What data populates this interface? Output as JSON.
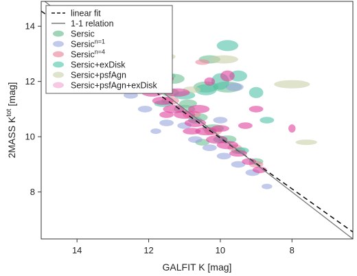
{
  "chart_data": {
    "type": "scatter",
    "xlabel": "GALFIT K [mag]",
    "ylabel_main": "2MASS K",
    "ylabel_sup": "tot",
    "ylabel_unit": "[mag]",
    "xlim": [
      15,
      6.3
    ],
    "ylim": [
      14.9,
      6.3
    ],
    "x_reversed": true,
    "y_reversed": true,
    "x_ticks": [
      14,
      12,
      10,
      8
    ],
    "y_ticks": [
      8,
      10,
      12,
      14
    ],
    "grid": false,
    "legend_position": "top-left",
    "lines": [
      {
        "name": "linear fit",
        "style": "dashed",
        "color": "#111111",
        "x": [
          15,
          6.3
        ],
        "y": [
          14.55,
          6.55
        ]
      },
      {
        "name": "1-1 relation",
        "style": "solid",
        "color": "#777777",
        "x": [
          15,
          6.3
        ],
        "y": [
          15,
          6.3
        ]
      }
    ],
    "legend": [
      {
        "type": "line",
        "style": "dashed",
        "base": "linear fit",
        "sup": ""
      },
      {
        "type": "line",
        "style": "solid",
        "base": "1-1 relation",
        "sup": ""
      },
      {
        "type": "marker",
        "color": "#8fccaa",
        "base": "Sersic",
        "sup": ""
      },
      {
        "type": "marker",
        "color": "#b7bfe6",
        "base": "Sersic",
        "sup": "n=1"
      },
      {
        "type": "marker",
        "color": "#f0a3b3",
        "base": "Sersic",
        "sup": "n=4"
      },
      {
        "type": "marker",
        "color": "#7fd6c1",
        "base": "Sersic+exDisk",
        "sup": ""
      },
      {
        "type": "marker",
        "color": "#d8dfc2",
        "base": "Sersic+psfAgn",
        "sup": ""
      },
      {
        "type": "marker",
        "color": "#f5bedf",
        "base": "Sersic+psfAgn+exDisk",
        "sup": ""
      }
    ],
    "series": [
      {
        "name": "Sersic",
        "color": "#6cbf95",
        "points": [
          [
            13.7,
            13.5,
            0.35,
            0.2
          ],
          [
            13.2,
            13.2,
            0.3,
            0.15
          ],
          [
            12.8,
            13.3,
            0.45,
            0.15
          ],
          [
            12.5,
            12.7,
            0.3,
            0.2
          ],
          [
            12.1,
            12.5,
            0.25,
            0.15
          ],
          [
            11.8,
            12.0,
            0.3,
            0.15
          ],
          [
            11.4,
            11.6,
            0.25,
            0.15
          ],
          [
            11.0,
            11.0,
            0.3,
            0.15
          ],
          [
            10.6,
            10.7,
            0.25,
            0.15
          ],
          [
            10.2,
            10.3,
            0.3,
            0.15
          ],
          [
            9.8,
            9.9,
            0.25,
            0.15
          ],
          [
            9.5,
            9.5,
            0.2,
            0.12
          ],
          [
            10.4,
            11.8,
            0.35,
            0.2
          ],
          [
            9.8,
            11.8,
            0.4,
            0.2
          ],
          [
            10.3,
            12.8,
            0.3,
            0.15
          ],
          [
            12.2,
            13.1,
            0.45,
            0.15
          ],
          [
            11.3,
            12.1,
            0.3,
            0.18
          ],
          [
            10.9,
            11.2,
            0.25,
            0.15
          ],
          [
            10.5,
            9.8,
            0.2,
            0.12
          ],
          [
            9.0,
            9.1,
            0.2,
            0.12
          ],
          [
            11.6,
            12.2,
            0.35,
            0.15
          ]
        ]
      },
      {
        "name": "Sersic n=1",
        "color": "#9aa6dd",
        "points": [
          [
            11.5,
            10.5,
            0.2,
            0.12
          ],
          [
            11.0,
            10.4,
            0.2,
            0.12
          ],
          [
            10.7,
            9.9,
            0.2,
            0.12
          ],
          [
            10.3,
            9.6,
            0.2,
            0.12
          ],
          [
            9.9,
            9.3,
            0.2,
            0.12
          ],
          [
            9.5,
            9.0,
            0.2,
            0.12
          ],
          [
            12.1,
            11.0,
            0.2,
            0.12
          ],
          [
            12.5,
            11.5,
            0.2,
            0.12
          ],
          [
            9.1,
            8.7,
            0.2,
            0.12
          ],
          [
            8.7,
            8.2,
            0.15,
            0.1
          ],
          [
            11.8,
            10.2,
            0.15,
            0.1
          ],
          [
            10.0,
            10.6,
            0.2,
            0.12
          ],
          [
            9.6,
            11.8,
            0.25,
            0.15
          ]
        ]
      },
      {
        "name": "Sersic n=4",
        "color": "#ec8aa0",
        "points": [
          [
            13.2,
            13.0,
            0.3,
            0.15
          ],
          [
            12.6,
            12.4,
            0.3,
            0.15
          ],
          [
            12.0,
            11.9,
            0.3,
            0.15
          ],
          [
            11.4,
            11.3,
            0.25,
            0.15
          ],
          [
            10.8,
            10.8,
            0.25,
            0.15
          ],
          [
            10.2,
            10.2,
            0.25,
            0.15
          ],
          [
            9.6,
            9.6,
            0.2,
            0.12
          ],
          [
            9.0,
            9.0,
            0.2,
            0.12
          ],
          [
            12.8,
            12.5,
            0.2,
            0.12
          ],
          [
            10.5,
            12.7,
            0.2,
            0.1
          ]
        ]
      },
      {
        "name": "Sersic+exDisk",
        "color": "#4fc2a6",
        "points": [
          [
            10.0,
            12.0,
            0.25,
            0.3
          ],
          [
            10.4,
            11.7,
            0.3,
            0.2
          ],
          [
            9.5,
            12.2,
            0.25,
            0.2
          ],
          [
            9.0,
            11.6,
            0.2,
            0.2
          ],
          [
            11.0,
            11.5,
            0.3,
            0.15
          ],
          [
            10.7,
            10.6,
            0.2,
            0.12
          ],
          [
            10.0,
            9.9,
            0.2,
            0.12
          ],
          [
            9.4,
            9.5,
            0.2,
            0.12
          ],
          [
            13.2,
            13.3,
            0.2,
            0.15
          ],
          [
            11.6,
            11.2,
            0.25,
            0.12
          ],
          [
            9.8,
            13.3,
            0.3,
            0.2
          ],
          [
            8.7,
            10.6,
            0.2,
            0.12
          ],
          [
            12.7,
            13.4,
            0.15,
            0.1
          ]
        ]
      },
      {
        "name": "Sersic+psfAgn",
        "color": "#c9d1a8",
        "points": [
          [
            8.0,
            11.9,
            0.5,
            0.15
          ],
          [
            7.6,
            9.8,
            0.3,
            0.1
          ],
          [
            9.9,
            12.8,
            0.4,
            0.15
          ],
          [
            11.5,
            12.9,
            0.25,
            0.12
          ],
          [
            12.2,
            12.9,
            0.25,
            0.12
          ],
          [
            10.8,
            11.7,
            0.25,
            0.12
          ],
          [
            12.0,
            11.9,
            0.3,
            0.12
          ]
        ]
      },
      {
        "name": "Sersic+psfAgn+exDisk",
        "color": "#e0419c",
        "points": [
          [
            13.4,
            13.1,
            0.3,
            0.15
          ],
          [
            13.0,
            12.7,
            0.35,
            0.15
          ],
          [
            12.7,
            12.4,
            0.3,
            0.15
          ],
          [
            12.4,
            12.1,
            0.35,
            0.15
          ],
          [
            12.1,
            11.9,
            0.3,
            0.15
          ],
          [
            11.9,
            11.6,
            0.3,
            0.15
          ],
          [
            11.6,
            11.3,
            0.3,
            0.15
          ],
          [
            11.3,
            11.0,
            0.3,
            0.15
          ],
          [
            11.0,
            10.8,
            0.3,
            0.15
          ],
          [
            10.7,
            10.5,
            0.3,
            0.15
          ],
          [
            10.4,
            10.2,
            0.3,
            0.15
          ],
          [
            10.1,
            9.9,
            0.3,
            0.15
          ],
          [
            9.8,
            9.7,
            0.3,
            0.15
          ],
          [
            9.5,
            9.4,
            0.25,
            0.12
          ],
          [
            9.2,
            9.1,
            0.2,
            0.12
          ],
          [
            8.9,
            8.8,
            0.2,
            0.12
          ],
          [
            12.3,
            12.6,
            0.3,
            0.12
          ],
          [
            11.2,
            11.6,
            0.35,
            0.15
          ],
          [
            10.6,
            11.0,
            0.3,
            0.15
          ],
          [
            10.0,
            10.3,
            0.25,
            0.12
          ],
          [
            9.8,
            12.2,
            0.2,
            0.2
          ],
          [
            9.0,
            11.0,
            0.2,
            0.12
          ],
          [
            8.0,
            10.3,
            0.1,
            0.15
          ],
          [
            11.6,
            12.1,
            0.3,
            0.15
          ],
          [
            12.4,
            13.1,
            0.2,
            0.1
          ],
          [
            13.5,
            13.5,
            0.2,
            0.12
          ],
          [
            12.0,
            12.5,
            0.3,
            0.12
          ],
          [
            10.8,
            10.2,
            0.25,
            0.12
          ],
          [
            11.5,
            10.8,
            0.2,
            0.12
          ],
          [
            9.3,
            10.4,
            0.2,
            0.12
          ],
          [
            10.3,
            12.0,
            0.15,
            0.15
          ]
        ]
      }
    ]
  }
}
